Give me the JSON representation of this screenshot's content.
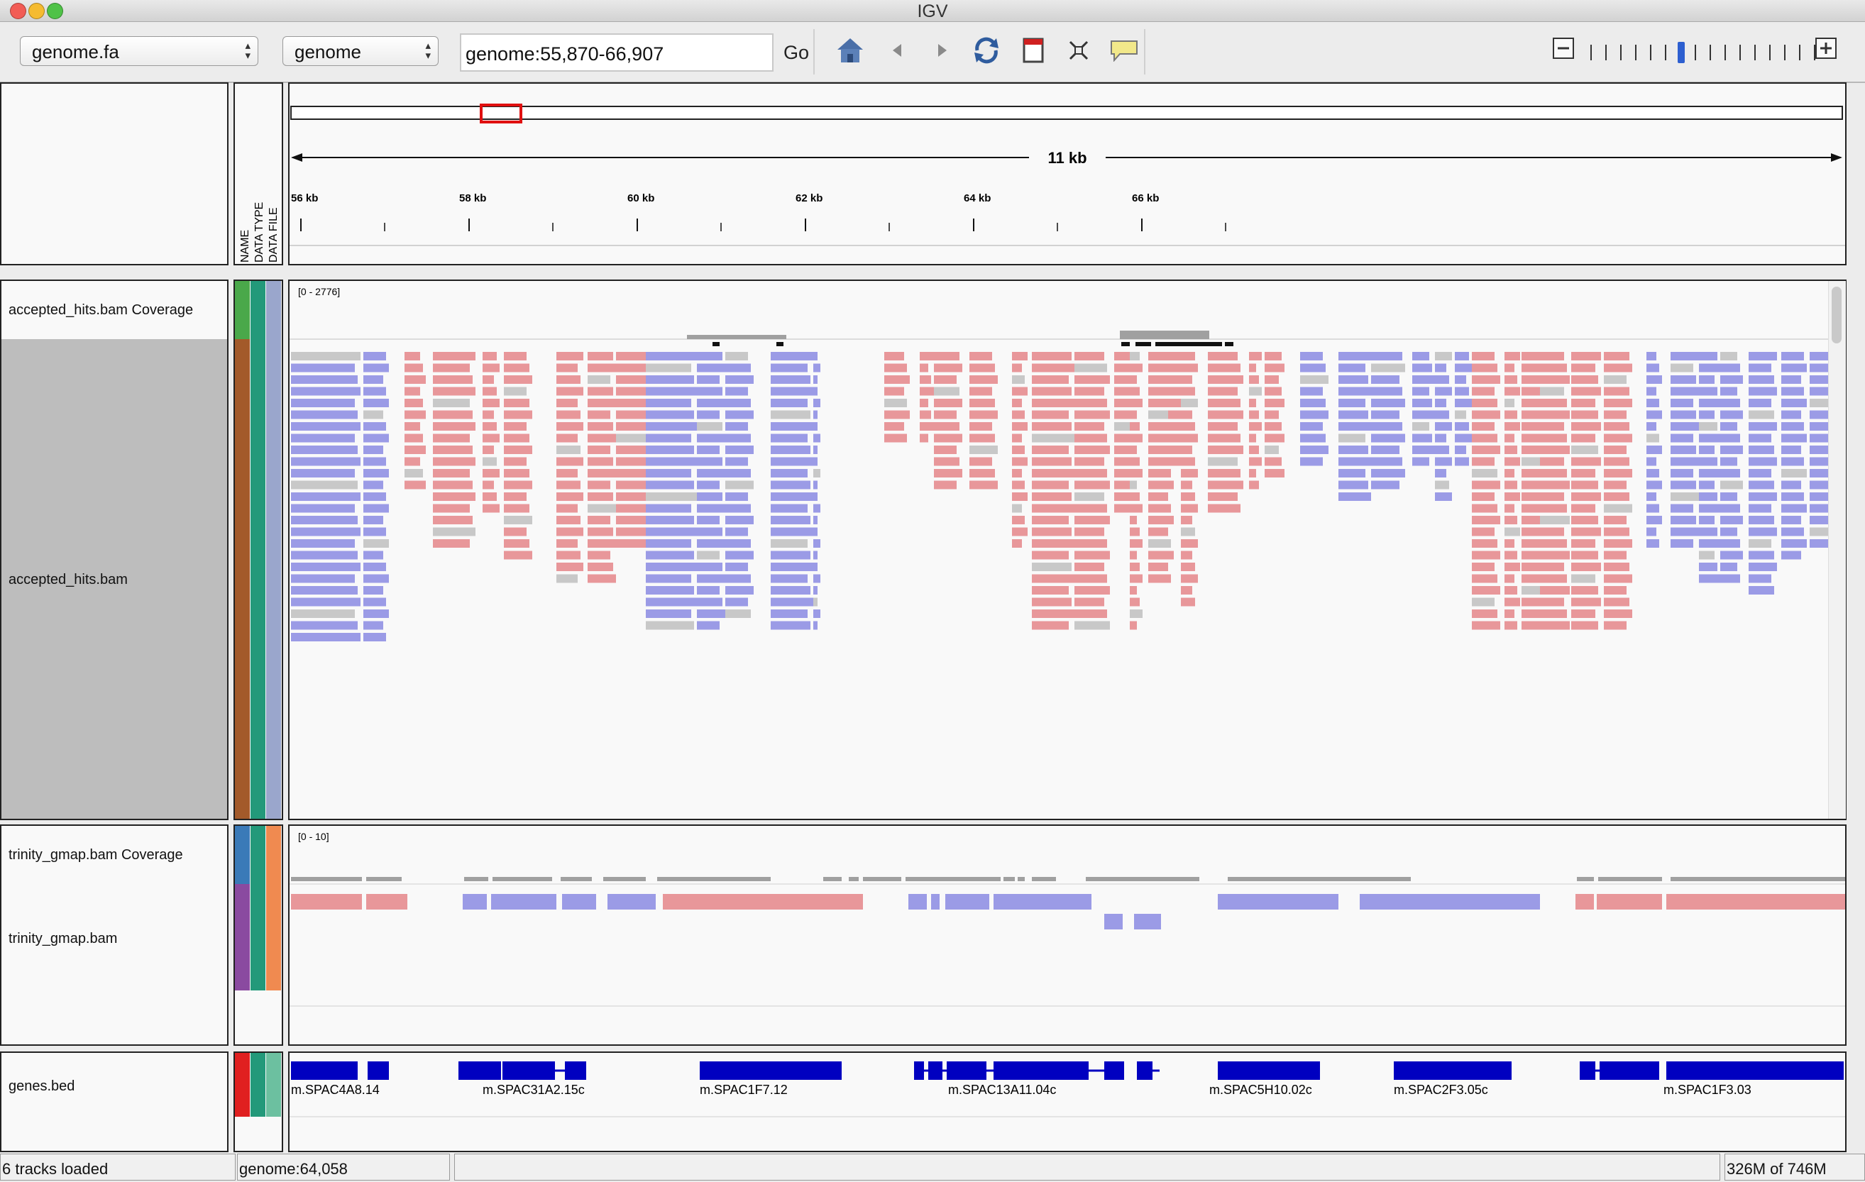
{
  "window": {
    "title": "IGV"
  },
  "toolbar": {
    "genome_select": "genome.fa",
    "chrom_select": "genome",
    "locus": "genome:55,870-66,907",
    "go_label": "Go"
  },
  "header": {
    "attr_labels": [
      "NAME",
      "DATA TYPE",
      "DATA FILE"
    ],
    "span_label": "11 kb",
    "ticks": [
      "56 kb",
      "58 kb",
      "60 kb",
      "62 kb",
      "64 kb",
      "66 kb"
    ]
  },
  "tracks": {
    "coverage": {
      "name": "accepted_hits.bam Coverage",
      "range": "[0 - 2776]",
      "attr_colors": [
        "#4aa84a",
        "#23997a",
        "#9aa6cc"
      ]
    },
    "alignments": {
      "name": "accepted_hits.bam",
      "attr_colors": [
        "#a35a2a",
        "#23997a",
        "#9aa6cc"
      ]
    },
    "gmap_coverage": {
      "name": "trinity_gmap.bam Coverage",
      "range": "[0 - 10]",
      "attr_colors": [
        "#3a7ab8",
        "#23997a",
        "#f08a50"
      ]
    },
    "gmap": {
      "name": "trinity_gmap.bam",
      "attr_colors": [
        "#8a4aa0",
        "#23997a",
        "#f08a50"
      ]
    },
    "genes": {
      "name": "genes.bed",
      "attr_colors": [
        "#e02020",
        "#23997a",
        "#6cc0a0"
      ],
      "labels": [
        "m.SPAC4A8.14",
        "m.SPAC31A2.15c",
        "m.SPAC1F7.12",
        "m.SPAC13A11.04c",
        "m.SPAC5H10.02c",
        "m.SPAC2F3.05c",
        "m.SPAC1F3.03"
      ]
    }
  },
  "status": {
    "tracks_loaded": "6 tracks loaded",
    "position": "genome:64,058",
    "memory": "326M of 746M"
  },
  "colors": {
    "forward_read": "#e8979a",
    "reverse_read": "#9b9be6",
    "low_mapq": "#c8c8c8",
    "gene": "#0000c0",
    "coverage": "#a0a0a0"
  },
  "icons": [
    "home-icon",
    "back-icon",
    "forward-icon",
    "refresh-icon",
    "roi-icon",
    "fit-icon",
    "popup-icon",
    "zoom-out-icon",
    "zoom-in-icon"
  ]
}
